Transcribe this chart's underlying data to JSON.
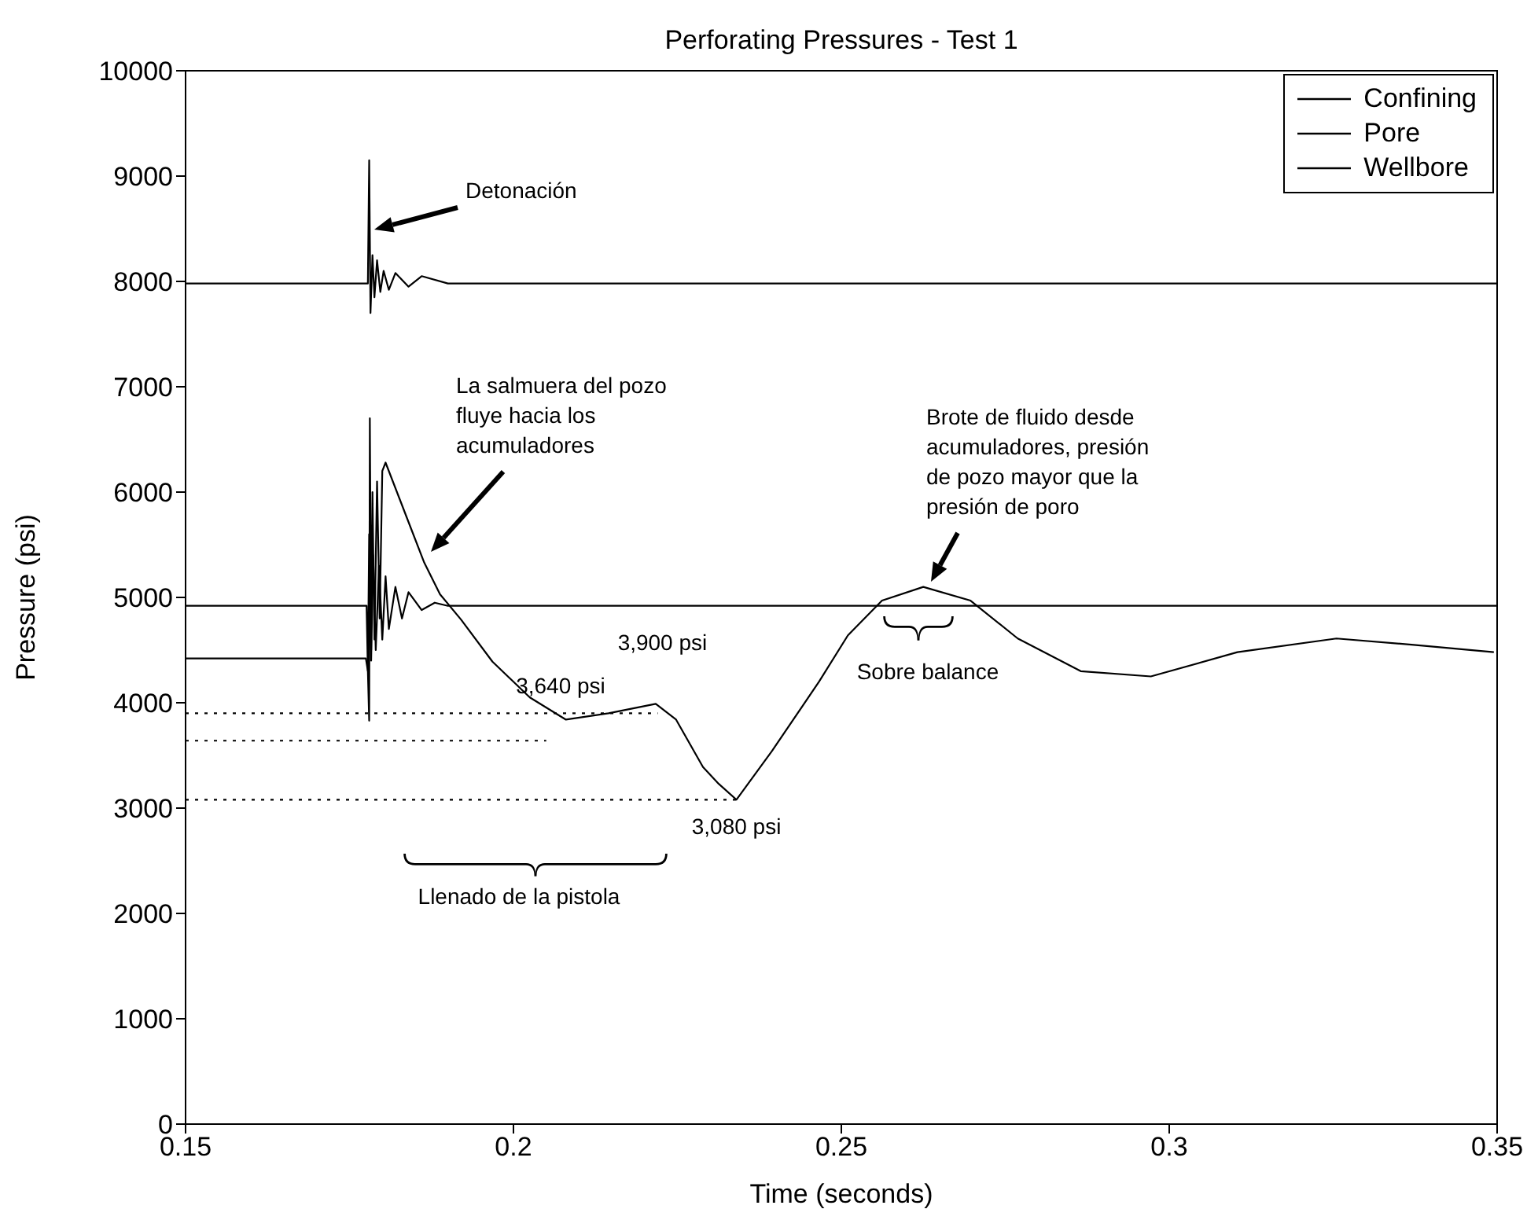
{
  "chart_data": {
    "type": "line",
    "title": "Perforating Pressures - Test 1",
    "xlabel": "Time (seconds)",
    "ylabel": "Pressure (psi)",
    "xlim": [
      0.15,
      0.35
    ],
    "xticks": [
      0.15,
      0.2,
      0.25,
      0.3,
      0.35
    ],
    "ylim": [
      0,
      10000
    ],
    "yticks": [
      0,
      1000,
      2000,
      3000,
      4000,
      5000,
      6000,
      7000,
      8000,
      9000,
      10000
    ],
    "grid": false,
    "legend": "top right",
    "marker": "none",
    "series": [
      {
        "name": "Confining",
        "color": "#000000",
        "x": [
          0.15,
          0.1778,
          0.178,
          0.1782,
          0.1785,
          0.1788,
          0.1792,
          0.1797,
          0.1802,
          0.181,
          0.182,
          0.184,
          0.186,
          0.19,
          0.35
        ],
        "values": [
          7980,
          7980,
          9150,
          7700,
          8250,
          7850,
          8200,
          7900,
          8100,
          7920,
          8080,
          7950,
          8050,
          7980,
          7980
        ]
      },
      {
        "name": "Pore",
        "color": "#000000",
        "x": [
          0.15,
          0.1776,
          0.1778,
          0.178,
          0.1783,
          0.1786,
          0.179,
          0.1795,
          0.18,
          0.1805,
          0.181,
          0.182,
          0.183,
          0.184,
          0.186,
          0.188,
          0.19,
          0.35
        ],
        "values": [
          4920,
          4920,
          4300,
          5600,
          4400,
          5400,
          4500,
          5300,
          4600,
          5200,
          4700,
          5100,
          4800,
          5050,
          4880,
          4950,
          4920,
          4920
        ]
      },
      {
        "name": "Wellbore",
        "color": "#000000",
        "x": [
          0.15,
          0.1775,
          0.1778,
          0.178,
          0.1781,
          0.1783,
          0.1785,
          0.1788,
          0.1792,
          0.1796,
          0.18,
          0.1805,
          0.1836,
          0.1864,
          0.1888,
          0.192,
          0.1968,
          0.2025,
          0.208,
          0.2145,
          0.2217,
          0.2248,
          0.2289,
          0.2313,
          0.234,
          0.2394,
          0.2466,
          0.251,
          0.2562,
          0.2625,
          0.2697,
          0.2769,
          0.2865,
          0.2972,
          0.3104,
          0.3255,
          0.3373,
          0.3495
        ],
        "values": [
          4420,
          4420,
          4300,
          3830,
          6700,
          4500,
          6000,
          4600,
          6100,
          4800,
          6200,
          6280,
          5780,
          5330,
          5030,
          4790,
          4390,
          4050,
          3840,
          3900,
          3990,
          3840,
          3390,
          3230,
          3080,
          3540,
          4200,
          4640,
          4970,
          5100,
          4970,
          4610,
          4300,
          4250,
          4480,
          4610,
          4550,
          4480
        ]
      },
      {
        "color": "#000000",
        "line_style": "dotted",
        "x": [
          0.15,
          0.222
        ],
        "values": [
          3900,
          3900
        ]
      },
      {
        "color": "#000000",
        "line_style": "dotted",
        "x": [
          0.15,
          0.205
        ],
        "values": [
          3640,
          3640
        ]
      },
      {
        "color": "#000000",
        "line_style": "dotted",
        "x": [
          0.15,
          0.234
        ],
        "values": [
          3080,
          3080
        ]
      }
    ],
    "annotations": [
      "Detonación",
      "La salmuera del pozo\nfluye hacia los\nacumuladores",
      "Brote de fluido desde\nacumuladores, presión\nde pozo mayor que la\npresión de poro",
      "Sobre balance",
      {
        "text": "3,900 psi",
        "x": 0.222,
        "y": 3900
      },
      {
        "text": "3,640 psi",
        "x": 0.2,
        "y": 3640
      },
      {
        "text": "3,080 psi",
        "x": 0.234,
        "y": 3080
      },
      "Llenado de la pistola"
    ]
  }
}
